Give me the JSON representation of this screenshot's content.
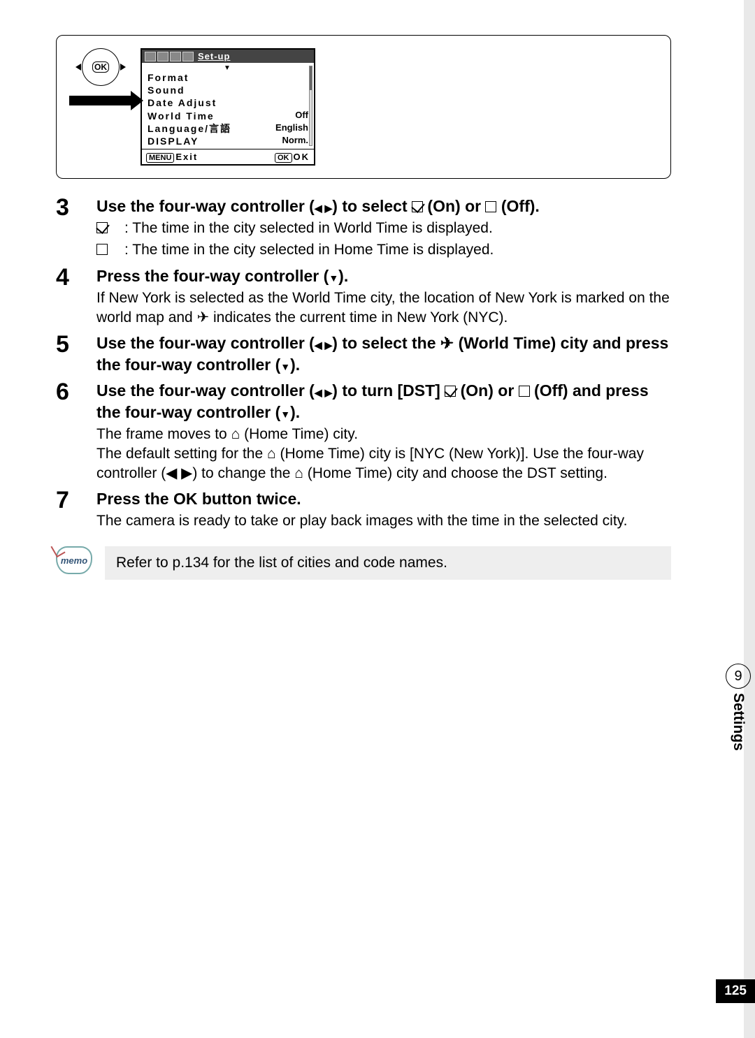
{
  "lcd": {
    "setup_label": "Set-up",
    "items": [
      {
        "label": "Format",
        "value": ""
      },
      {
        "label": "Sound",
        "value": ""
      },
      {
        "label": "Date Adjust",
        "value": ""
      },
      {
        "label": "World Time",
        "value": "Off"
      },
      {
        "label": "Language/言語",
        "value": "English"
      },
      {
        "label": "DISPLAY",
        "value": "Norm."
      }
    ],
    "footer_menu": "MENU",
    "footer_exit": "Exit",
    "footer_ok": "OK",
    "footer_ok2": "OK"
  },
  "ok_button_label": "OK",
  "steps": {
    "s3": {
      "num": "3",
      "head_a": "Use the four-way controller (",
      "head_b": ") to select ",
      "head_on": "(On) or ",
      "head_off": " (Off).",
      "expl_on": ": The time in the city selected in World Time is displayed.",
      "expl_off": ": The time in the city selected in Home Time is displayed."
    },
    "s4": {
      "num": "4",
      "head": "Press the four-way controller (",
      "head_end": ").",
      "desc": "If New York is selected as the World Time city, the location of New York is marked on the world map and ✈ indicates the current time in New York (NYC)."
    },
    "s5": {
      "num": "5",
      "head_a": "Use the four-way controller (",
      "head_b": ") to select the ✈ (World Time) city and press the four-way controller (",
      "head_c": ")."
    },
    "s6": {
      "num": "6",
      "head_a": "Use the four-way controller (",
      "head_b": ") to turn [DST] ",
      "head_on": " (On) or ",
      "head_off": " (Off) and press the four-way controller (",
      "head_c": ").",
      "desc_a": "The frame moves to ⌂ (Home Time) city.",
      "desc_b": "The default setting for the ⌂ (Home Time) city is [NYC (New York)]. Use the four-way controller (◀ ▶) to change the ⌂ (Home Time) city and choose the DST setting."
    },
    "s7": {
      "num": "7",
      "head": "Press the OK button twice.",
      "desc": "The camera is ready to take or play back images with the time in the selected city."
    }
  },
  "memo": {
    "icon_label": "memo",
    "text": "Refer to p.134 for the list of cities and code names."
  },
  "side": {
    "chapter": "9",
    "label": "Settings"
  },
  "page_number": "125"
}
